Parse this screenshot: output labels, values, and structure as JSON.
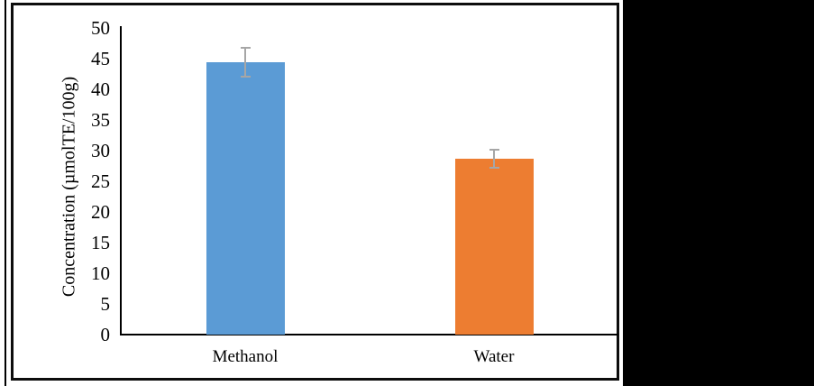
{
  "figure": {
    "background": "#ffffff",
    "frame_color": "#0d0d0d",
    "side_panel_color": "#000000",
    "axis_color": "#000000"
  },
  "chart_data": {
    "type": "bar",
    "title": "",
    "categories": [
      "Methanol",
      "Water"
    ],
    "series": [
      {
        "name": "Concentration",
        "values": [
          44.4,
          28.7
        ],
        "errors": [
          2.3,
          1.5
        ]
      }
    ],
    "bar_colors": [
      "#5B9BD5",
      "#ED7D31"
    ],
    "error_bar_color": "#A6A6A6",
    "xlabel": "",
    "ylabel": "Concentration (µmolTE/100g)",
    "ylim": [
      0,
      50
    ],
    "yticks": [
      0,
      5,
      10,
      15,
      20,
      25,
      30,
      35,
      40,
      45,
      50
    ],
    "grid": false,
    "legend": "none"
  }
}
